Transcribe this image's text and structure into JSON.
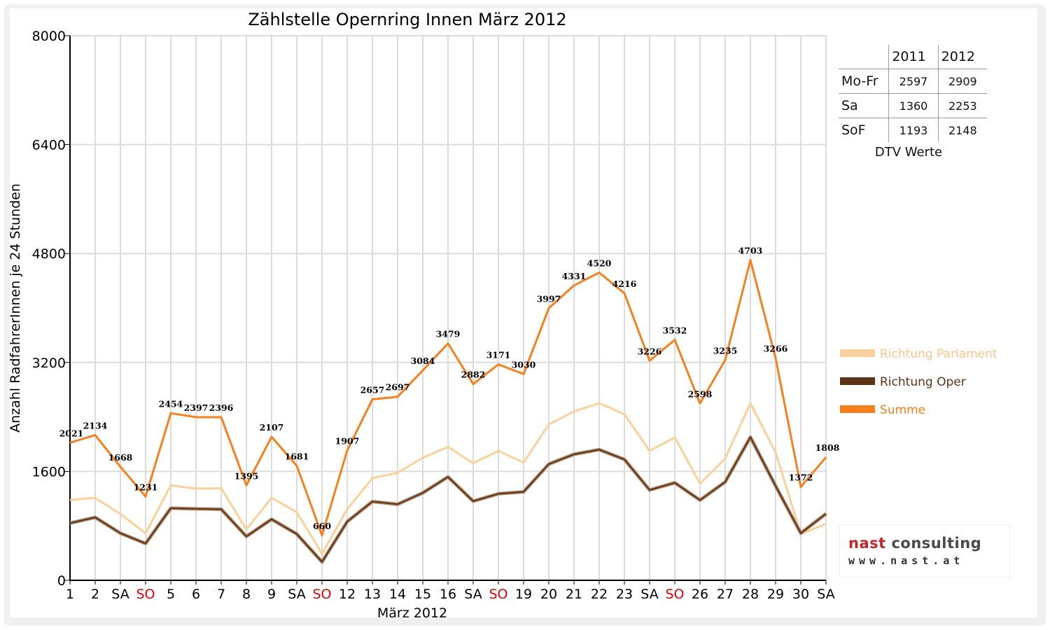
{
  "chart_data": {
    "type": "line",
    "title": "Zählstelle Opernring Innen März 2012",
    "xlabel": "März 2012",
    "ylabel": "Anzahl RadfahrerInnen je 24 Stunden",
    "ylim": [
      0,
      8000
    ],
    "yticks": [
      "0",
      "1600",
      "3200",
      "4800",
      "6400",
      "8000"
    ],
    "categories": [
      "1",
      "2",
      "SA",
      "SO",
      "5",
      "6",
      "7",
      "8",
      "9",
      "SA",
      "SO",
      "12",
      "13",
      "14",
      "15",
      "16",
      "SA",
      "SO",
      "19",
      "20",
      "21",
      "22",
      "23",
      "SA",
      "SO",
      "26",
      "27",
      "28",
      "29",
      "30",
      "SA"
    ],
    "weekend_color": "#e00000",
    "grid": true,
    "legend_position": "right",
    "series": [
      {
        "name": "Richtung Parlament",
        "color": "#fad19a",
        "values": [
          1181,
          1210,
          976,
          690,
          1395,
          1347,
          1352,
          750,
          1210,
          1001,
          390,
          1045,
          1500,
          1580,
          1800,
          1960,
          1720,
          1900,
          1730,
          2290,
          2480,
          2600,
          2440,
          1900,
          2100,
          1420,
          1790,
          2600,
          1880,
          680,
          830
        ]
      },
      {
        "name": "Richtung Oper",
        "color": "#5c3418",
        "values": [
          840,
          924,
          692,
          541,
          1059,
          1050,
          1044,
          645,
          897,
          680,
          270,
          862,
          1157,
          1117,
          1284,
          1519,
          1162,
          1271,
          1300,
          1707,
          1851,
          1920,
          1776,
          1326,
          1432,
          1178,
          1445,
          2103,
          1386,
          692,
          978
        ]
      },
      {
        "name": "Summe",
        "color": "#f7801e",
        "values": [
          2021,
          2134,
          1668,
          1231,
          2454,
          2397,
          2396,
          1395,
          2107,
          1681,
          660,
          1907,
          2657,
          2697,
          3084,
          3479,
          2882,
          3171,
          3030,
          3997,
          4331,
          4520,
          4216,
          3226,
          3532,
          2598,
          3235,
          4703,
          3266,
          1372,
          1808
        ],
        "labels": [
          "2021",
          "2134",
          "1668",
          "1231",
          "2454",
          "2397",
          "2396",
          "1395",
          "2107",
          "1681",
          "660",
          "1907",
          "2657",
          "2697",
          "3084",
          "3479",
          "2882",
          "3171",
          "3030",
          "3997",
          "4331",
          "4520",
          "4216",
          "3226",
          "3532",
          "2598",
          "3235",
          "4703",
          "3266",
          "1372",
          "1808"
        ]
      }
    ],
    "dtv_table": {
      "caption": "DTV Werte",
      "headers": [
        "2011",
        "2012"
      ],
      "rows": [
        {
          "label": "Mo-Fr",
          "values": [
            "2597",
            "2909"
          ]
        },
        {
          "label": "Sa",
          "values": [
            "1360",
            "2253"
          ]
        },
        {
          "label": "SoF",
          "values": [
            "1193",
            "2148"
          ]
        }
      ]
    }
  },
  "logo": {
    "name_part1": "nast",
    "name_part2": "consulting",
    "url": "www.nast.at"
  }
}
